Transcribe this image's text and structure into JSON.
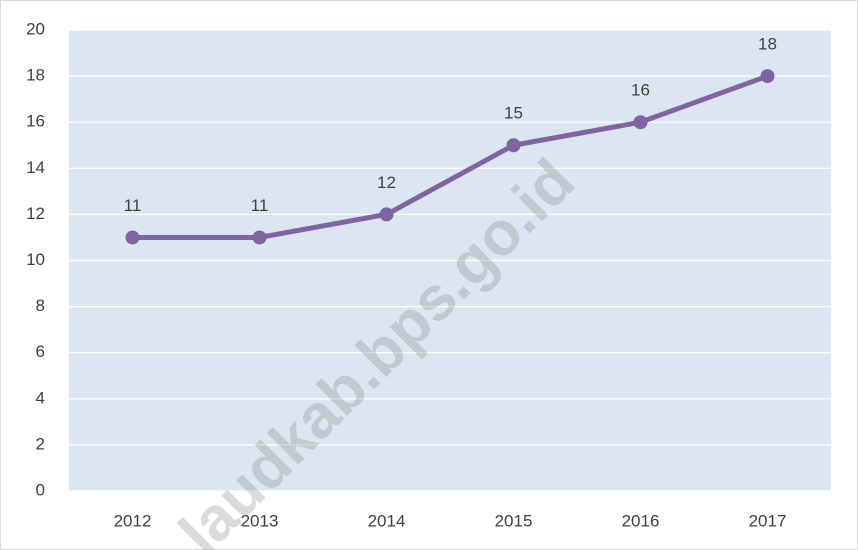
{
  "chart_data": {
    "type": "line",
    "categories": [
      "2012",
      "2013",
      "2014",
      "2015",
      "2016",
      "2017"
    ],
    "values": [
      11,
      11,
      12,
      15,
      16,
      18
    ],
    "color": "#8064a2",
    "ylim": [
      0,
      20
    ],
    "yticks": [
      0,
      2,
      4,
      6,
      8,
      10,
      12,
      14,
      16,
      18,
      20
    ],
    "grid": true,
    "watermark": "laudkab.bps.go.id"
  }
}
